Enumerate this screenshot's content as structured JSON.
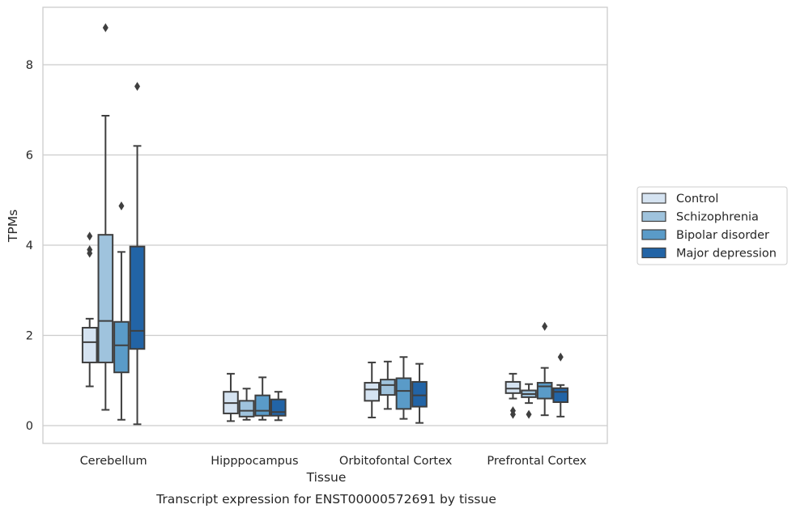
{
  "chart_data": {
    "type": "box",
    "title": "Transcript expression for ENST00000572691 by tissue",
    "xlabel": "Tissue",
    "ylabel": "TPMs",
    "ylim": [
      -0.4,
      9.3
    ],
    "yticks": [
      0,
      2,
      4,
      6,
      8
    ],
    "grid": true,
    "legend_position": "right",
    "categories": [
      "Cerebellum",
      "Hipppocampus",
      "Orbitofontal Cortex",
      "Prefrontal Cortex"
    ],
    "series": [
      {
        "name": "Control",
        "color": "#d5e3f1",
        "boxes": [
          {
            "whislo": 0.87,
            "q1": 1.4,
            "med": 1.85,
            "q3": 2.17,
            "whishi": 2.37,
            "fliers": [
              4.2,
              3.9,
              3.82
            ]
          },
          {
            "whislo": 0.1,
            "q1": 0.27,
            "med": 0.5,
            "q3": 0.75,
            "whishi": 1.15,
            "fliers": []
          },
          {
            "whislo": 0.18,
            "q1": 0.55,
            "med": 0.8,
            "q3": 0.95,
            "whishi": 1.4,
            "fliers": []
          },
          {
            "whislo": 0.6,
            "q1": 0.72,
            "med": 0.82,
            "q3": 0.97,
            "whishi": 1.15,
            "fliers": [
              0.33,
              0.25
            ]
          }
        ]
      },
      {
        "name": "Schizophrenia",
        "color": "#9fc3dd",
        "boxes": [
          {
            "whislo": 0.35,
            "q1": 1.4,
            "med": 2.32,
            "q3": 4.23,
            "whishi": 6.87,
            "fliers": [
              8.82
            ]
          },
          {
            "whislo": 0.13,
            "q1": 0.2,
            "med": 0.33,
            "q3": 0.55,
            "whishi": 0.82,
            "fliers": []
          },
          {
            "whislo": 0.37,
            "q1": 0.68,
            "med": 0.9,
            "q3": 1.02,
            "whishi": 1.42,
            "fliers": []
          },
          {
            "whislo": 0.5,
            "q1": 0.63,
            "med": 0.7,
            "q3": 0.78,
            "whishi": 0.92,
            "fliers": [
              0.25
            ]
          }
        ]
      },
      {
        "name": "Bipolar disorder",
        "color": "#5a9bc8",
        "boxes": [
          {
            "whislo": 0.13,
            "q1": 1.18,
            "med": 1.78,
            "q3": 2.3,
            "whishi": 3.85,
            "fliers": [
              4.87
            ]
          },
          {
            "whislo": 0.13,
            "q1": 0.22,
            "med": 0.33,
            "q3": 0.67,
            "whishi": 1.07,
            "fliers": []
          },
          {
            "whislo": 0.15,
            "q1": 0.37,
            "med": 0.77,
            "q3": 1.05,
            "whishi": 1.52,
            "fliers": []
          },
          {
            "whislo": 0.23,
            "q1": 0.6,
            "med": 0.87,
            "q3": 0.95,
            "whishi": 1.28,
            "fliers": [
              2.2
            ]
          }
        ]
      },
      {
        "name": "Major depression",
        "color": "#2264a6",
        "boxes": [
          {
            "whislo": 0.03,
            "q1": 1.7,
            "med": 2.1,
            "q3": 3.97,
            "whishi": 6.2,
            "fliers": [
              7.52
            ]
          },
          {
            "whislo": 0.12,
            "q1": 0.22,
            "med": 0.3,
            "q3": 0.58,
            "whishi": 0.75,
            "fliers": []
          },
          {
            "whislo": 0.06,
            "q1": 0.42,
            "med": 0.67,
            "q3": 0.97,
            "whishi": 1.37,
            "fliers": []
          },
          {
            "whislo": 0.2,
            "q1": 0.52,
            "med": 0.75,
            "q3": 0.83,
            "whishi": 0.9,
            "fliers": [
              1.52
            ]
          }
        ]
      }
    ]
  }
}
